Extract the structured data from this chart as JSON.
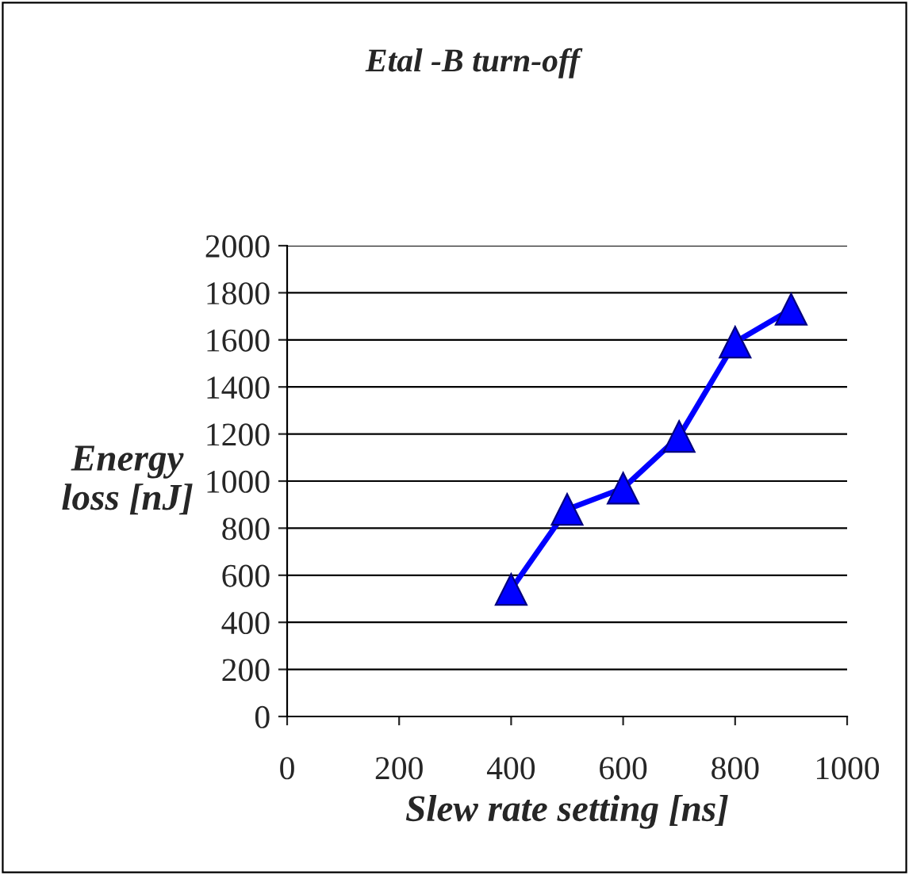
{
  "chart_data": {
    "type": "line",
    "title": "Etal -B turn-off",
    "xlabel": "Slew rate setting [ns]",
    "ylabel": "Energy\nloss [nJ]",
    "x": [
      400,
      500,
      600,
      700,
      800,
      900
    ],
    "series": [
      {
        "color": "#0000ff",
        "values": [
          540,
          880,
          970,
          1190,
          1590,
          1730
        ]
      }
    ],
    "xlim": [
      0,
      1000
    ],
    "xticks": [
      0,
      200,
      400,
      600,
      800,
      1000
    ],
    "ylim": [
      0,
      2000
    ],
    "yticks": [
      0,
      200,
      400,
      600,
      800,
      1000,
      1200,
      1400,
      1600,
      1800,
      2000
    ],
    "grid": "y",
    "marker": "triangle",
    "line_style": "solid",
    "legend": false
  }
}
